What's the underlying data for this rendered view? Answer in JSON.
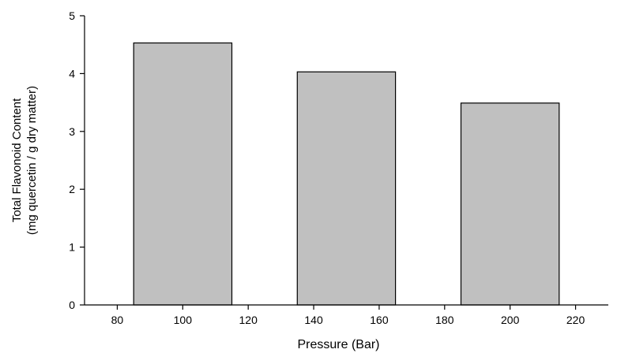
{
  "chart_data": {
    "type": "bar",
    "x": [
      100,
      150,
      200
    ],
    "values": [
      4.53,
      4.03,
      3.49
    ],
    "bar_width": 30,
    "xlabel": "Pressure  (Bar)",
    "ylabel_lines": [
      "Total  Flavonoid Content",
      "(mg quercetin / g dry matter)"
    ],
    "xlim": [
      70,
      230
    ],
    "ylim": [
      0,
      5
    ],
    "xticks": [
      80,
      100,
      120,
      140,
      160,
      180,
      200,
      220
    ],
    "yticks": [
      0,
      1,
      2,
      3,
      4,
      5
    ],
    "grid": false,
    "colors": {
      "bar_fill": "#c0c0c0",
      "bar_stroke": "#000000",
      "axis": "#000000"
    }
  }
}
